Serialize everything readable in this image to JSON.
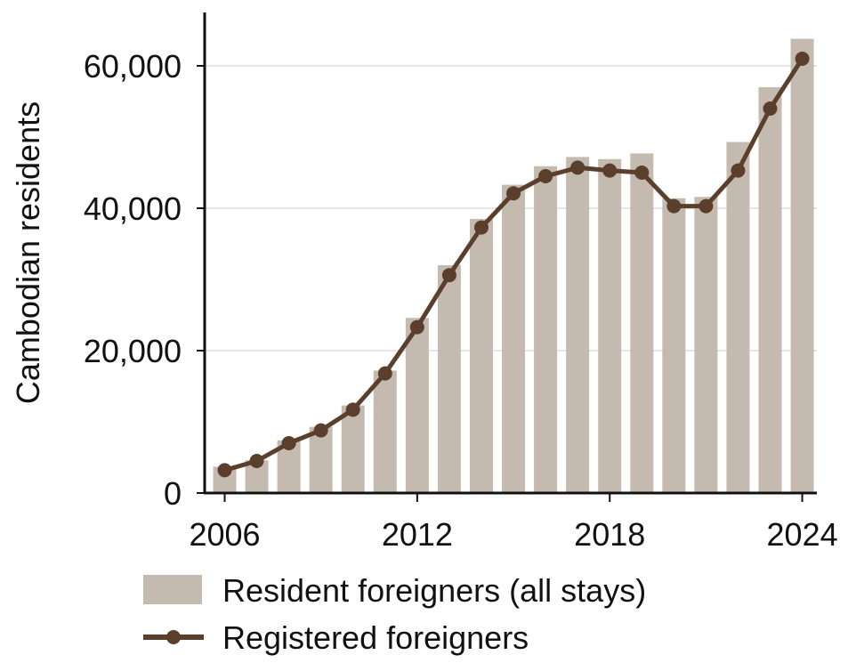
{
  "chart_data": {
    "type": "bar",
    "title": "",
    "ylabel": "Cambodian residents",
    "xlabel": "",
    "ylim": [
      0,
      67500
    ],
    "grid": "horizontal",
    "legend_position": "bottom",
    "x": [
      2006,
      2007,
      2008,
      2009,
      2010,
      2011,
      2012,
      2013,
      2014,
      2015,
      2016,
      2017,
      2018,
      2019,
      2020,
      2021,
      2022,
      2023,
      2024
    ],
    "x_ticks": [
      "2006",
      "2012",
      "2018",
      "2024"
    ],
    "y_ticks": [
      0,
      20000,
      40000,
      60000
    ],
    "y_tick_labels": [
      "0",
      "20,000",
      "40,000",
      "60,000"
    ],
    "series": [
      {
        "name": "Resident foreigners (all stays)",
        "type": "bar",
        "color": "#c4bab0",
        "values": [
          3700,
          4600,
          7400,
          9300,
          12300,
          17200,
          24600,
          32000,
          38500,
          43300,
          45900,
          47200,
          46900,
          47700,
          41400,
          41600,
          49300,
          57000,
          63800
        ]
      },
      {
        "name": "Registered foreigners",
        "type": "line",
        "color": "#5b3f2d",
        "values": [
          3200,
          4500,
          7000,
          8800,
          11700,
          16800,
          23300,
          30600,
          37300,
          42100,
          44500,
          45700,
          45300,
          45000,
          40300,
          40300,
          45300,
          54000,
          61000
        ]
      }
    ]
  }
}
